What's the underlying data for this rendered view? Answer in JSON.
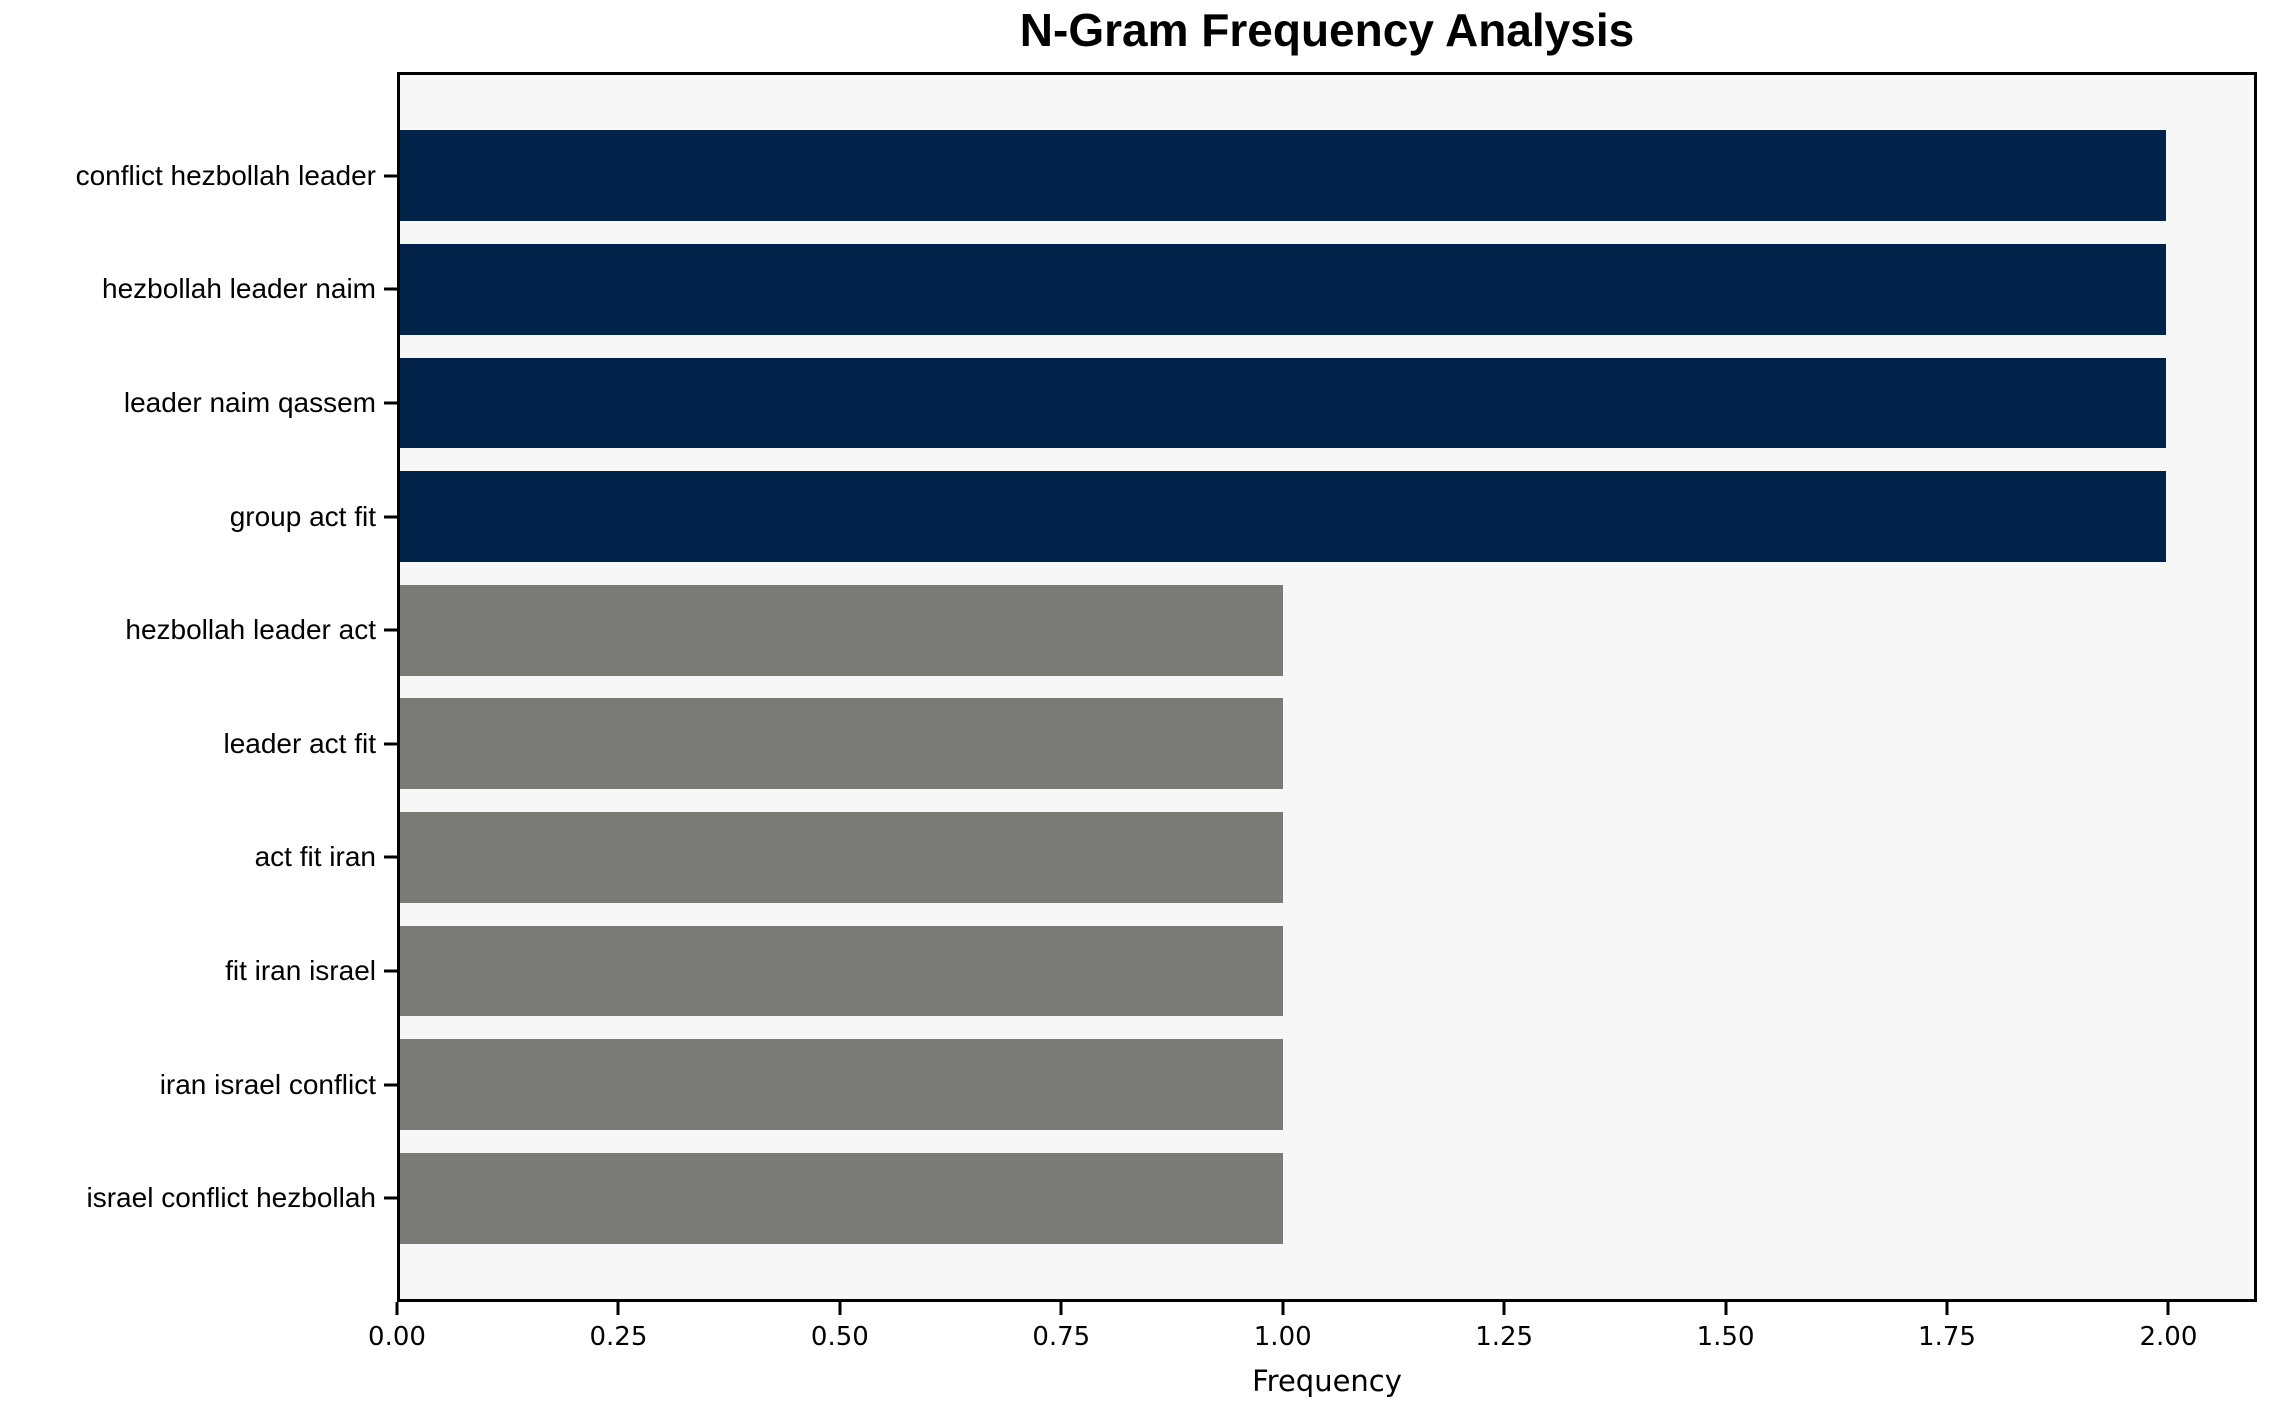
{
  "chart_data": {
    "type": "bar",
    "orientation": "horizontal",
    "title": "N-Gram Frequency Analysis",
    "xlabel": "Frequency",
    "ylabel": "",
    "categories": [
      "conflict hezbollah leader",
      "hezbollah leader naim",
      "leader naim qassem",
      "group act fit",
      "hezbollah leader act",
      "leader act fit",
      "act fit iran",
      "fit iran israel",
      "iran israel conflict",
      "israel conflict hezbollah"
    ],
    "values": [
      2,
      2,
      2,
      2,
      1,
      1,
      1,
      1,
      1,
      1
    ],
    "bar_color_keys": [
      "highlight",
      "highlight",
      "highlight",
      "highlight",
      "normal",
      "normal",
      "normal",
      "normal",
      "normal",
      "normal"
    ],
    "xlim": [
      0,
      2.1
    ],
    "xticks": [
      0,
      0.25,
      0.5,
      0.75,
      1,
      1.25,
      1.5,
      1.75,
      2
    ],
    "xtick_labels": [
      "0.00",
      "0.25",
      "0.50",
      "0.75",
      "1.00",
      "1.25",
      "1.50",
      "1.75",
      "2.00"
    ],
    "colors": {
      "highlight": "#022349",
      "normal": "#7a7a76",
      "plot_bg": "#f7f7f7",
      "spine": "#000000",
      "text": "#000000"
    },
    "grid": false,
    "legend": null
  }
}
